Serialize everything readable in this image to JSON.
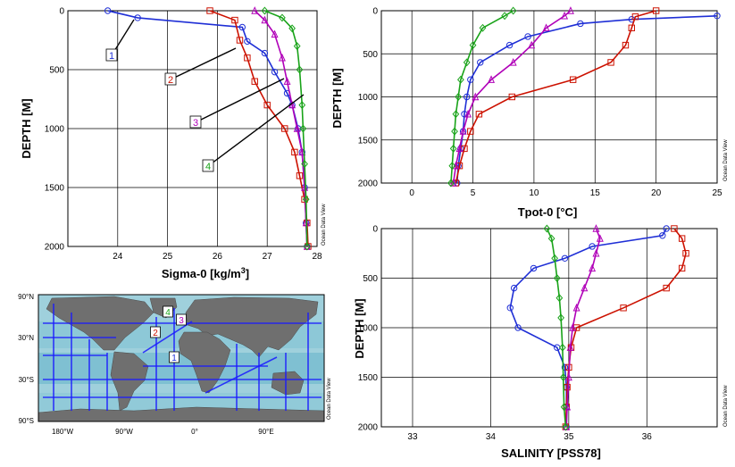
{
  "colors": {
    "s1": "#1f2fd6",
    "s2": "#cc1100",
    "s3": "#b000b8",
    "s4": "#19a319",
    "grid": "#000000",
    "ocean_light": "#9fd0dc",
    "ocean_mid": "#5fb0c8",
    "land": "#6f6f6f",
    "track": "#1a1aff"
  },
  "side_label": "Ocean Data View",
  "chart_data": [
    {
      "id": "sigma",
      "type": "line",
      "xlabel": "Sigma-0 [kg/m",
      "xlabel_sup": "3",
      "xlabel_close": "]",
      "ylabel": "DEPTH [M]",
      "xlim": [
        23,
        28
      ],
      "ylim": [
        0,
        2000
      ],
      "xticks": [
        "24",
        "25",
        "26",
        "27",
        "28"
      ],
      "yticks": [
        "0",
        "500",
        "1000",
        "1500",
        "2000"
      ],
      "callouts": [
        "1",
        "2",
        "3",
        "4"
      ],
      "series": [
        {
          "name": "1",
          "x": [
            23.8,
            24.4,
            26.5,
            26.6,
            26.95,
            27.15,
            27.4,
            27.5,
            27.62,
            27.7,
            27.75,
            27.78,
            27.8
          ],
          "y": [
            0,
            60,
            140,
            260,
            360,
            520,
            700,
            800,
            1000,
            1200,
            1500,
            1800,
            2000
          ]
        },
        {
          "name": "2",
          "x": [
            25.85,
            26.35,
            26.45,
            26.6,
            26.75,
            27.0,
            27.35,
            27.55,
            27.65,
            27.75,
            27.8,
            27.82
          ],
          "y": [
            0,
            80,
            250,
            400,
            600,
            800,
            1000,
            1200,
            1400,
            1600,
            1800,
            2000
          ]
        },
        {
          "name": "3",
          "x": [
            26.75,
            26.95,
            27.15,
            27.3,
            27.4,
            27.5,
            27.6,
            27.7,
            27.75,
            27.78,
            27.8
          ],
          "y": [
            0,
            80,
            200,
            400,
            600,
            800,
            1000,
            1200,
            1500,
            1800,
            2000
          ]
        },
        {
          "name": "4",
          "x": [
            26.95,
            27.3,
            27.5,
            27.6,
            27.65,
            27.7,
            27.72,
            27.75,
            27.78,
            27.8
          ],
          "y": [
            0,
            60,
            150,
            300,
            500,
            800,
            1000,
            1300,
            1600,
            2000
          ]
        }
      ]
    },
    {
      "id": "tpot",
      "type": "line",
      "xlabel": "Tpot-0 [°C]",
      "ylabel": "DEPTH [M]",
      "xlim": [
        -2.5,
        25
      ],
      "ylim": [
        0,
        2000
      ],
      "xticks": [
        "0",
        "5",
        "10",
        "15",
        "20",
        "25"
      ],
      "yticks": [
        "0",
        "500",
        "1000",
        "1500",
        "2000"
      ],
      "series": [
        {
          "name": "1",
          "x": [
            25,
            18,
            13.8,
            9.5,
            8.0,
            5.6,
            4.8,
            4.5,
            4.3,
            4.2,
            4.0,
            3.8,
            3.7
          ],
          "y": [
            60,
            100,
            150,
            300,
            400,
            600,
            800,
            1000,
            1200,
            1400,
            1600,
            1800,
            2000
          ]
        },
        {
          "name": "2",
          "x": [
            20.0,
            18.3,
            18.0,
            17.5,
            16.3,
            13.2,
            8.2,
            5.5,
            4.8,
            4.3,
            3.9,
            3.6
          ],
          "y": [
            0,
            70,
            200,
            400,
            600,
            800,
            1000,
            1200,
            1400,
            1600,
            1800,
            2000
          ]
        },
        {
          "name": "3",
          "x": [
            13.0,
            12.5,
            11.0,
            9.8,
            8.3,
            6.5,
            5.2,
            4.6,
            4.2,
            3.9,
            3.6,
            3.4
          ],
          "y": [
            0,
            60,
            200,
            400,
            600,
            800,
            1000,
            1200,
            1400,
            1600,
            1800,
            2000
          ]
        },
        {
          "name": "4",
          "x": [
            8.3,
            7.6,
            5.8,
            5.0,
            4.5,
            4.0,
            3.8,
            3.6,
            3.5,
            3.4,
            3.3,
            3.2
          ],
          "y": [
            0,
            60,
            200,
            400,
            600,
            800,
            1000,
            1200,
            1400,
            1600,
            1800,
            2000
          ]
        }
      ]
    },
    {
      "id": "salinity",
      "type": "line",
      "xlabel": "SALINITY [PSS78]",
      "ylabel": "DEPTH [M]",
      "xlim": [
        32.6,
        36.9
      ],
      "ylim": [
        0,
        2000
      ],
      "xticks": [
        "33",
        "34",
        "35",
        "36"
      ],
      "yticks": [
        "0",
        "500",
        "1000",
        "1500",
        "2000"
      ],
      "series": [
        {
          "name": "1",
          "x": [
            36.25,
            36.2,
            35.3,
            34.95,
            34.55,
            34.3,
            34.25,
            34.35,
            34.85,
            34.95,
            34.97,
            34.97,
            34.97
          ],
          "y": [
            0,
            70,
            180,
            300,
            400,
            600,
            800,
            1000,
            1200,
            1400,
            1600,
            1800,
            2000
          ]
        },
        {
          "name": "2",
          "x": [
            36.35,
            36.45,
            36.5,
            36.45,
            36.25,
            35.7,
            35.1,
            35.03,
            35.0,
            34.98,
            34.97,
            34.96
          ],
          "y": [
            0,
            100,
            250,
            400,
            600,
            800,
            1000,
            1200,
            1400,
            1600,
            1800,
            2000
          ]
        },
        {
          "name": "3",
          "x": [
            35.35,
            35.4,
            35.35,
            35.3,
            35.2,
            35.1,
            35.05,
            35.02,
            35.0,
            34.98,
            34.97
          ],
          "y": [
            0,
            100,
            250,
            400,
            600,
            800,
            1000,
            1200,
            1500,
            1800,
            2000
          ]
        },
        {
          "name": "4",
          "x": [
            34.72,
            34.78,
            34.82,
            34.85,
            34.88,
            34.9,
            34.92,
            34.93,
            34.94,
            34.96
          ],
          "y": [
            0,
            100,
            300,
            500,
            700,
            900,
            1200,
            1500,
            1800,
            2000
          ]
        }
      ]
    }
  ],
  "map": {
    "lat_ticks": [
      "90°N",
      "30°N",
      "30°S",
      "90°S"
    ],
    "lon_ticks": [
      "180°W",
      "90°W",
      "0°",
      "90°E"
    ],
    "labels": [
      "1",
      "2",
      "3",
      "4"
    ]
  }
}
